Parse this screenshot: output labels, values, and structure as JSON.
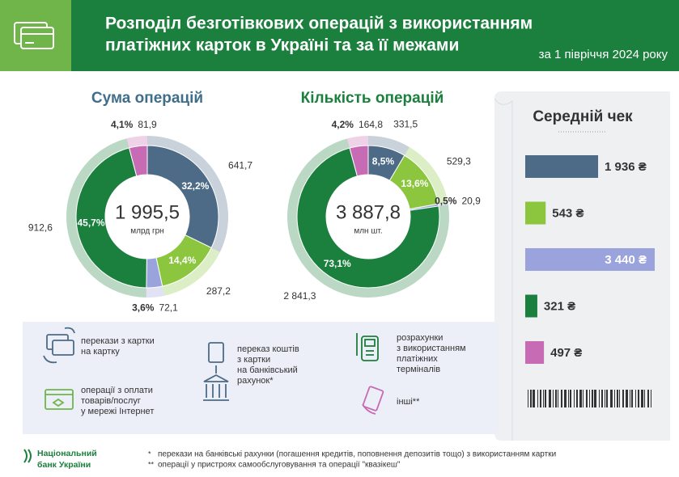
{
  "header": {
    "title_lines": [
      "Розподіл безготівкових операцій з використанням",
      "платіжних карток в Україні та за її межами"
    ],
    "subtitle": "за 1 півріччя 2024 року"
  },
  "chart_data": [
    {
      "type": "pie",
      "title": "Сума операцій",
      "total": 1995.5,
      "total_label": "1 995,5",
      "unit": "млрд грн",
      "values": [
        641.7,
        287.2,
        72.1,
        912.6,
        81.9
      ],
      "value_labels": [
        "641,7",
        "287,2",
        "72,1",
        "912,6",
        "81,9"
      ],
      "percents": [
        32.2,
        14.4,
        3.6,
        45.7,
        4.1
      ],
      "percent_labels": [
        "32,2%",
        "14,4%",
        "3,6%",
        "45,7%",
        "4,1%"
      ],
      "colors": [
        "#4d6b86",
        "#8cc63f",
        "#9aa3dc",
        "#1b7f3d",
        "#c66bb4"
      ]
    },
    {
      "type": "pie",
      "title": "Кількість операцій",
      "total": 3887.8,
      "total_label": "3 887,8",
      "unit": "млн шт.",
      "values": [
        331.5,
        529.3,
        20.9,
        2841.3,
        164.8
      ],
      "value_labels": [
        "331,5",
        "529,3",
        "20,9",
        "2 841,3",
        "164,8"
      ],
      "percents": [
        8.5,
        13.6,
        0.5,
        73.1,
        4.2
      ],
      "percent_labels": [
        "8,5%",
        "13,6%",
        "0,5%",
        "73,1%",
        "4,2%"
      ],
      "colors": [
        "#4d6b86",
        "#8cc63f",
        "#9aa3dc",
        "#1b7f3d",
        "#c66bb4"
      ]
    },
    {
      "type": "hbar",
      "title": "Середній чек",
      "values": [
        1936,
        543,
        3440,
        321,
        497
      ],
      "value_labels": [
        "1 936 ₴",
        "543 ₴",
        "3 440 ₴",
        "321 ₴",
        "497 ₴"
      ],
      "colors": [
        "#4d6b86",
        "#8cc63f",
        "#9aa3dc",
        "#1b7f3d",
        "#c66bb4"
      ]
    }
  ],
  "legend": [
    {
      "lines": [
        "перекази з картки",
        "на картку"
      ]
    },
    {
      "lines": [
        "переказ коштів",
        "з картки",
        "на банківський",
        "рахунок*"
      ]
    },
    {
      "lines": [
        "розрахунки",
        "з використанням",
        "платіжних",
        "терміналів"
      ]
    },
    {
      "lines": [
        "операції з оплати",
        "товарів/послуг",
        "у мережі Інтернет"
      ]
    },
    {
      "lines": [
        "інші**"
      ]
    }
  ],
  "footer": {
    "logo_lines": [
      "Національний",
      "банк України"
    ],
    "footnotes": [
      {
        "mark": "*",
        "text": "перекази на банківські рахунки (погашення кредитів, поповнення депозитів тощо) з використанням картки"
      },
      {
        "mark": "**",
        "text": "операції у пристроях самообслуговування та операції \"квазікеш\""
      }
    ]
  }
}
